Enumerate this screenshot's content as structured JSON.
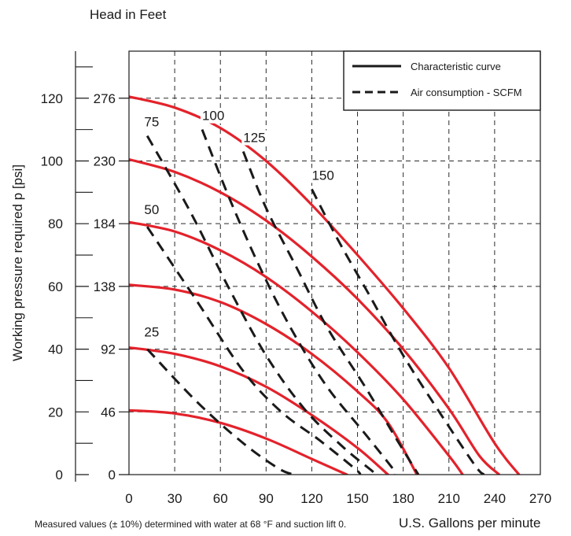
{
  "chart_data": {
    "type": "line",
    "title": "",
    "secondary_axis_title": "Head in Feet",
    "xlabel": "U.S. Gallons per minute",
    "ylabel": "Working pressure required p [psi]",
    "xlim": [
      0,
      270
    ],
    "ylim": [
      0,
      135
    ],
    "x_ticks": [
      "0",
      "30",
      "60",
      "90",
      "120",
      "150",
      "180",
      "210",
      "240",
      "270"
    ],
    "x_tick_values": [
      0,
      30,
      60,
      90,
      120,
      150,
      180,
      210,
      240,
      270
    ],
    "y_ticks": [
      "0",
      "20",
      "40",
      "60",
      "80",
      "100",
      "120"
    ],
    "y_tick_values": [
      0,
      20,
      40,
      60,
      80,
      100,
      120
    ],
    "y_minor_ticks": [
      10,
      30,
      50,
      70,
      90,
      110,
      130
    ],
    "head_ticks": [
      "0",
      "46",
      "92",
      "138",
      "184",
      "230",
      "276"
    ],
    "head_tick_psi": [
      0,
      20,
      40,
      60,
      80,
      100,
      120
    ],
    "grid": true,
    "legend_position": "top-right",
    "legend": [
      {
        "label": "Characteristic curve",
        "style": "solid"
      },
      {
        "label": "Air consumption - SCFM",
        "style": "dashed"
      }
    ],
    "footnote": "Measured values (± 10%) determined with water at 68 °F and suction lift 0.",
    "colors": {
      "characteristic": "#e3222b",
      "air": "#1a1a1a",
      "grid": "#2a2a2a",
      "frame": "#1a1a1a"
    },
    "characteristic_curves": [
      {
        "pressure_psi": 20,
        "points": [
          [
            0,
            20.5
          ],
          [
            30,
            19.5
          ],
          [
            60,
            16.5
          ],
          [
            90,
            11.5
          ],
          [
            120,
            5
          ],
          [
            143,
            0
          ]
        ]
      },
      {
        "pressure_psi": 40,
        "points": [
          [
            0,
            40.5
          ],
          [
            30,
            38.5
          ],
          [
            60,
            34.5
          ],
          [
            90,
            28
          ],
          [
            120,
            19
          ],
          [
            150,
            8.5
          ],
          [
            170,
            0
          ]
        ]
      },
      {
        "pressure_psi": 60,
        "points": [
          [
            0,
            60.5
          ],
          [
            30,
            59
          ],
          [
            60,
            55
          ],
          [
            90,
            48
          ],
          [
            120,
            38.5
          ],
          [
            150,
            26.5
          ],
          [
            170,
            16.5
          ],
          [
            189,
            0
          ]
        ]
      },
      {
        "pressure_psi": 80,
        "points": [
          [
            0,
            80.5
          ],
          [
            30,
            77.5
          ],
          [
            60,
            71.5
          ],
          [
            90,
            63
          ],
          [
            120,
            52
          ],
          [
            150,
            39
          ],
          [
            180,
            24
          ],
          [
            210,
            6
          ],
          [
            219,
            0
          ]
        ]
      },
      {
        "pressure_psi": 100,
        "points": [
          [
            0,
            100.5
          ],
          [
            30,
            96.5
          ],
          [
            60,
            90
          ],
          [
            90,
            81
          ],
          [
            120,
            69.5
          ],
          [
            150,
            56
          ],
          [
            180,
            40
          ],
          [
            210,
            21
          ],
          [
            230,
            6
          ],
          [
            243,
            0
          ]
        ]
      },
      {
        "pressure_psi": 120,
        "points": [
          [
            0,
            120.5
          ],
          [
            30,
            117
          ],
          [
            60,
            110.5
          ],
          [
            90,
            100
          ],
          [
            120,
            86
          ],
          [
            150,
            70
          ],
          [
            180,
            53
          ],
          [
            210,
            34
          ],
          [
            240,
            10
          ],
          [
            256,
            0
          ]
        ]
      }
    ],
    "air_consumption_curves": [
      {
        "scfm": "25",
        "label_at": [
          10,
          44
        ],
        "points": [
          [
            12,
            40
          ],
          [
            45,
            23
          ],
          [
            75,
            10
          ],
          [
            98,
            2
          ],
          [
            108,
            0
          ]
        ]
      },
      {
        "scfm": "50",
        "label_at": [
          10,
          83
        ],
        "points": [
          [
            12,
            79
          ],
          [
            45,
            55
          ],
          [
            75,
            33
          ],
          [
            100,
            20
          ],
          [
            125,
            11
          ],
          [
            148,
            2
          ],
          [
            152,
            0
          ]
        ]
      },
      {
        "scfm": "75",
        "label_at": [
          10,
          111
        ],
        "points": [
          [
            12,
            108
          ],
          [
            40,
            84
          ],
          [
            65,
            60
          ],
          [
            90,
            38
          ],
          [
            115,
            21
          ],
          [
            140,
            9
          ],
          [
            160,
            1
          ],
          [
            162,
            0
          ]
        ]
      },
      {
        "scfm": "100",
        "label_at": [
          48,
          113
        ],
        "points": [
          [
            48,
            110
          ],
          [
            66,
            88
          ],
          [
            86,
            66
          ],
          [
            107,
            46
          ],
          [
            130,
            28
          ],
          [
            155,
            13
          ],
          [
            173,
            2
          ],
          [
            175,
            0
          ]
        ]
      },
      {
        "scfm": "125",
        "label_at": [
          75,
          106
        ],
        "points": [
          [
            75,
            103
          ],
          [
            90,
            85
          ],
          [
            110,
            66
          ],
          [
            130,
            47
          ],
          [
            155,
            28
          ],
          [
            176,
            11
          ],
          [
            190,
            0
          ]
        ]
      },
      {
        "scfm": "150",
        "label_at": [
          120,
          94
        ],
        "points": [
          [
            120,
            91
          ],
          [
            137,
            75
          ],
          [
            158,
            57
          ],
          [
            180,
            38
          ],
          [
            205,
            19
          ],
          [
            227,
            3
          ],
          [
            233,
            0
          ]
        ]
      }
    ]
  }
}
